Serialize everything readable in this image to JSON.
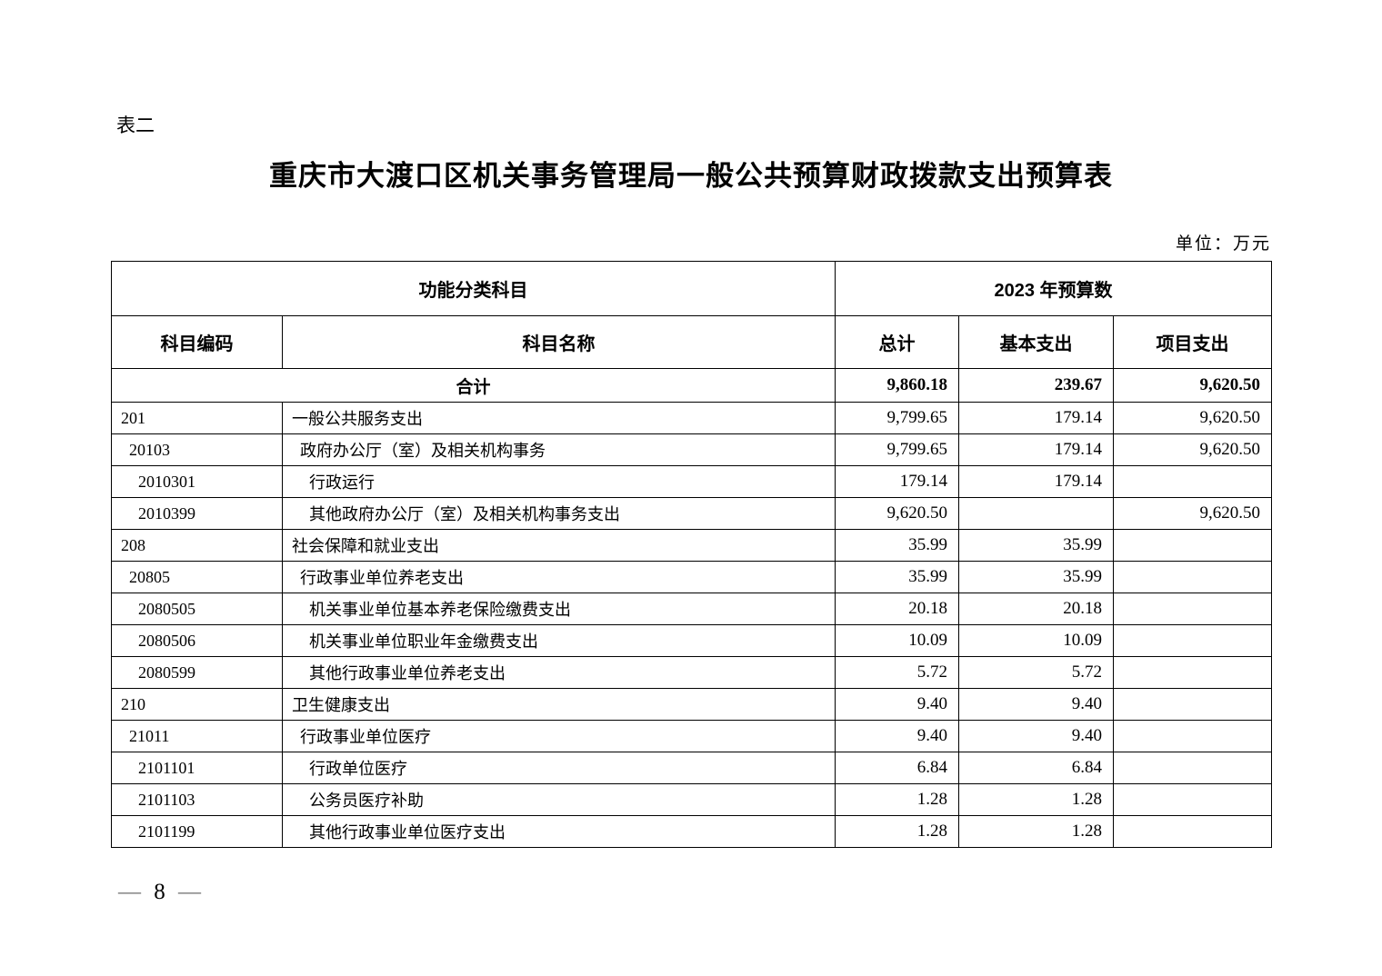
{
  "page": {
    "table_label": "表二",
    "title": "重庆市大渡口区机关事务管理局一般公共预算财政拨款支出预算表",
    "unit_note": "单位：万元",
    "page_number": "8",
    "footer_dash": "—"
  },
  "table": {
    "header": {
      "function_group": "功能分类科目",
      "year_group": "2023 年预算数",
      "code": "科目编码",
      "name": "科目名称",
      "total": "总计",
      "basic": "基本支出",
      "project": "项目支出"
    },
    "total_row": {
      "label": "合计",
      "total": "9,860.18",
      "basic": "239.67",
      "project": "9,620.50"
    },
    "rows": [
      {
        "code": "201",
        "name": "一般公共服务支出",
        "level": 1,
        "total": "9,799.65",
        "basic": "179.14",
        "project": "9,620.50"
      },
      {
        "code": "20103",
        "name": "政府办公厅（室）及相关机构事务",
        "level": 2,
        "total": "9,799.65",
        "basic": "179.14",
        "project": "9,620.50"
      },
      {
        "code": "2010301",
        "name": "行政运行",
        "level": 3,
        "total": "179.14",
        "basic": "179.14",
        "project": ""
      },
      {
        "code": "2010399",
        "name": "其他政府办公厅（室）及相关机构事务支出",
        "level": 3,
        "total": "9,620.50",
        "basic": "",
        "project": "9,620.50"
      },
      {
        "code": "208",
        "name": "社会保障和就业支出",
        "level": 1,
        "total": "35.99",
        "basic": "35.99",
        "project": ""
      },
      {
        "code": "20805",
        "name": "行政事业单位养老支出",
        "level": 2,
        "total": "35.99",
        "basic": "35.99",
        "project": ""
      },
      {
        "code": "2080505",
        "name": "机关事业单位基本养老保险缴费支出",
        "level": 3,
        "total": "20.18",
        "basic": "20.18",
        "project": ""
      },
      {
        "code": "2080506",
        "name": "机关事业单位职业年金缴费支出",
        "level": 3,
        "total": "10.09",
        "basic": "10.09",
        "project": ""
      },
      {
        "code": "2080599",
        "name": "其他行政事业单位养老支出",
        "level": 3,
        "total": "5.72",
        "basic": "5.72",
        "project": ""
      },
      {
        "code": "210",
        "name": "卫生健康支出",
        "level": 1,
        "total": "9.40",
        "basic": "9.40",
        "project": ""
      },
      {
        "code": "21011",
        "name": "行政事业单位医疗",
        "level": 2,
        "total": "9.40",
        "basic": "9.40",
        "project": ""
      },
      {
        "code": "2101101",
        "name": "行政单位医疗",
        "level": 3,
        "total": "6.84",
        "basic": "6.84",
        "project": ""
      },
      {
        "code": "2101103",
        "name": "公务员医疗补助",
        "level": 3,
        "total": "1.28",
        "basic": "1.28",
        "project": ""
      },
      {
        "code": "2101199",
        "name": "其他行政事业单位医疗支出",
        "level": 3,
        "total": "1.28",
        "basic": "1.28",
        "project": ""
      }
    ]
  }
}
